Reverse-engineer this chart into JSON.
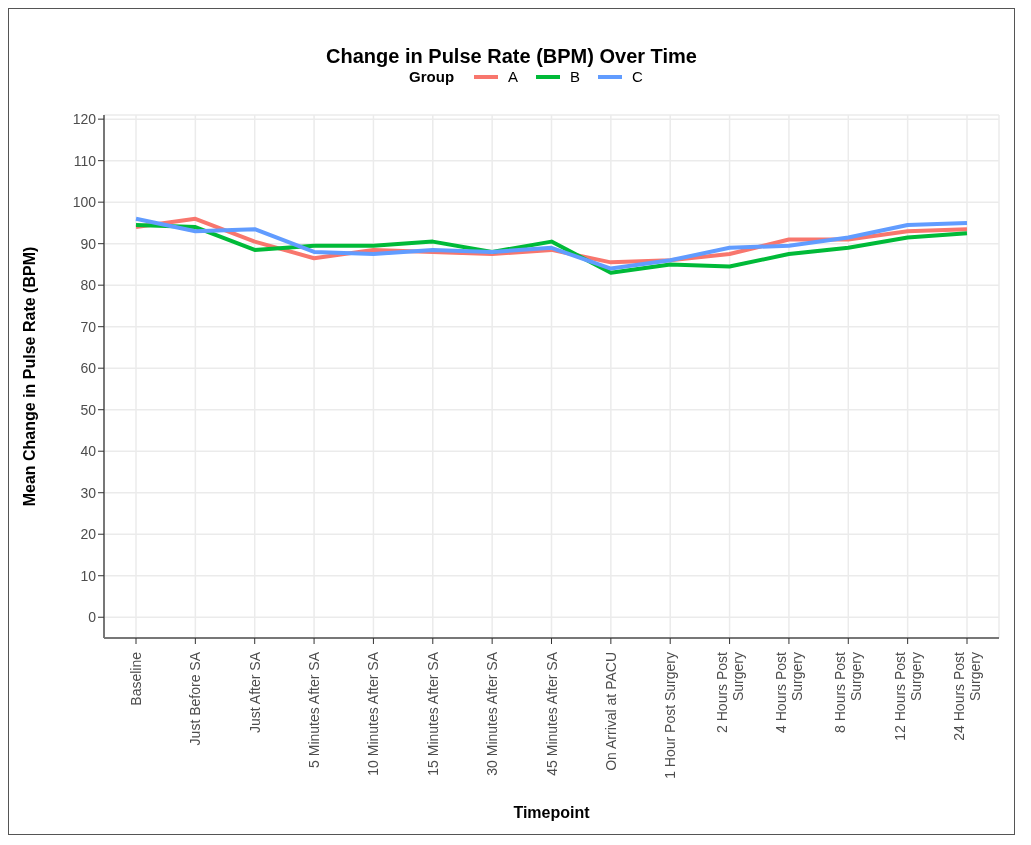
{
  "chart_data": {
    "type": "line",
    "title": "Change in Pulse Rate (BPM) Over Time",
    "xlabel": "Timepoint",
    "ylabel": "Mean Change in Pulse Rate (BPM)",
    "legend_title": "Group",
    "legend": "top",
    "grid": true,
    "marker": "none",
    "line_style": "solid",
    "categories": [
      "Baseline",
      "Just Before SA",
      "Just After SA",
      "5 Minutes After SA",
      "10 Minutes After SA",
      "15 Minutes After SA",
      "30 Minutes After SA",
      "45 Minutes After SA",
      "On Arrival at PACU",
      "1 Hour Post Surgery",
      "2 Hours Post Surgery",
      "4 Hours Post Surgery",
      "8 Hours Post Surgery",
      "12 Hours Post Surgery",
      "24 Hours Post Surgery"
    ],
    "ylim": [
      -5,
      121
    ],
    "yticks": [
      0,
      10,
      20,
      30,
      40,
      50,
      60,
      70,
      80,
      90,
      100,
      110,
      120
    ],
    "series": [
      {
        "name": "A",
        "color": "#f8766d",
        "values": [
          94,
          96,
          90.5,
          86.5,
          88.5,
          88,
          87.5,
          88.5,
          85.5,
          86,
          87.5,
          91,
          91,
          93,
          93.5
        ]
      },
      {
        "name": "B",
        "color": "#00ba38",
        "values": [
          94.5,
          94,
          88.5,
          89.5,
          89.5,
          90.5,
          88,
          90.5,
          83,
          85,
          84.5,
          87.5,
          89,
          91.5,
          92.5
        ]
      },
      {
        "name": "C",
        "color": "#619cff",
        "values": [
          96,
          93,
          93.5,
          88,
          87.5,
          88.5,
          88,
          89,
          84,
          86,
          89,
          89.5,
          91.5,
          94.5,
          95
        ]
      }
    ]
  }
}
